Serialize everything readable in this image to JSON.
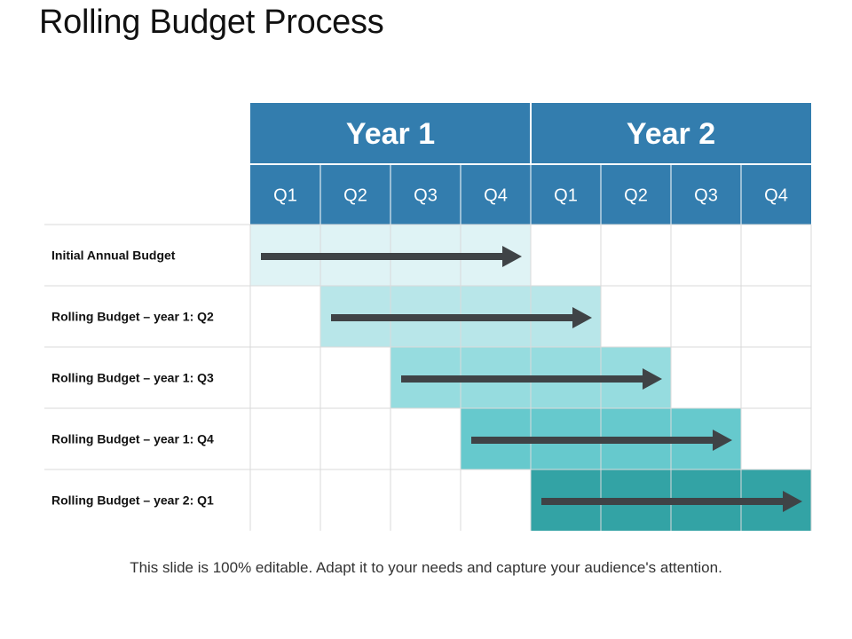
{
  "slide": {
    "title": "Rolling Budget Process",
    "footer": "This slide is 100% editable. Adapt it to your needs and capture your audience's attention."
  },
  "timeline": {
    "years": [
      "Year 1",
      "Year 2"
    ],
    "quarters": [
      "Q1",
      "Q2",
      "Q3",
      "Q4",
      "Q1",
      "Q2",
      "Q3",
      "Q4"
    ]
  },
  "rows": [
    {
      "label": "Initial Annual Budget",
      "start_quarter": 1,
      "end_quarter": 4,
      "color": "#dff3f5"
    },
    {
      "label": "Rolling Budget – year 1: Q2",
      "start_quarter": 2,
      "end_quarter": 5,
      "color": "#b8e6e9"
    },
    {
      "label": "Rolling Budget – year 1: Q3",
      "start_quarter": 3,
      "end_quarter": 6,
      "color": "#96dcdf"
    },
    {
      "label": "Rolling Budget – year 1: Q4",
      "start_quarter": 4,
      "end_quarter": 7,
      "color": "#66c9cd"
    },
    {
      "label": "Rolling Budget – year 2: Q1",
      "start_quarter": 5,
      "end_quarter": 8,
      "color": "#33a3a5"
    }
  ],
  "colors": {
    "header": "#337dae",
    "header_text": "#ffffff",
    "grid": "#dadada",
    "arrow": "#3f4346",
    "label_text": "#111111"
  }
}
